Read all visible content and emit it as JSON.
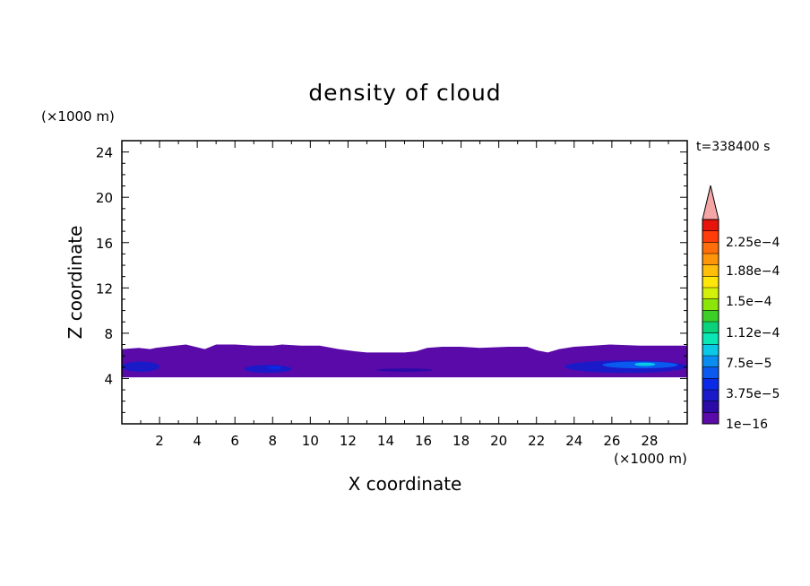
{
  "chart_data": {
    "type": "heatmap",
    "title": "density of cloud",
    "xlabel": "X coordinate",
    "ylabel": "Z coordinate",
    "x_unit": "(×1000 m)",
    "y_unit": "(×1000 m)",
    "time_label": "t=338400 s",
    "xlim": [
      0,
      30
    ],
    "ylim": [
      0,
      25
    ],
    "x_ticks": [
      "2",
      "4",
      "6",
      "8",
      "10",
      "12",
      "14",
      "16",
      "18",
      "20",
      "22",
      "24",
      "26",
      "28"
    ],
    "y_ticks": [
      "4",
      "8",
      "12",
      "16",
      "20",
      "24"
    ],
    "colorbar": {
      "tick_labels": [
        "1e−16",
        "3.75e−5",
        "7.5e−5",
        "1.12e−4",
        "1.5e−4",
        "1.88e−4",
        "2.25e−4"
      ],
      "colors": [
        "#5a0aa8",
        "#2c0aa8",
        "#1a1ac8",
        "#0a2ae6",
        "#0a5af0",
        "#0a8cf0",
        "#0ac8e6",
        "#0ae6b4",
        "#0ad27a",
        "#3ccf28",
        "#8ce60a",
        "#d2f00a",
        "#ffe60a",
        "#ffbe0a",
        "#ff960a",
        "#ff6e0a",
        "#ff3c0a",
        "#e6140a"
      ],
      "extend_color": "#f4a6a6"
    },
    "cloud_layer": {
      "base_z": 4.1,
      "top_z": [
        6.6,
        6.7,
        6.6,
        6.7,
        6.8,
        7.0,
        6.6,
        7.0,
        7.0,
        6.9,
        6.9,
        7.0,
        6.9,
        6.9,
        6.6,
        6.4,
        6.3,
        6.3,
        6.3,
        6.4,
        6.7,
        6.8,
        6.8,
        6.7,
        6.8,
        6.8,
        6.5,
        6.3,
        6.6,
        6.8,
        6.9,
        7.0,
        6.9,
        6.9,
        6.9
      ],
      "top_x": [
        0,
        0.9,
        1.5,
        1.8,
        2.3,
        3.4,
        4.4,
        5.0,
        6.0,
        7.0,
        8.0,
        8.5,
        9.5,
        10.5,
        11.5,
        12.4,
        13.0,
        14.0,
        15.0,
        15.6,
        16.2,
        17.0,
        18.0,
        19.0,
        20.5,
        21.5,
        22.0,
        22.6,
        23.2,
        24.0,
        25.0,
        25.9,
        27.5,
        29.0,
        30.0
      ],
      "denser_patches": [
        {
          "x": [
            0,
            2.0
          ],
          "z": [
            4.6,
            5.5
          ],
          "level": 2
        },
        {
          "x": [
            6.5,
            9.0
          ],
          "z": [
            4.5,
            5.2
          ],
          "level": 2
        },
        {
          "x": [
            7.7,
            8.5
          ],
          "z": [
            4.8,
            5.1
          ],
          "level": 3
        },
        {
          "x": [
            13.5,
            16.5
          ],
          "z": [
            4.6,
            4.9
          ],
          "level": 1
        },
        {
          "x": [
            23.5,
            30.0
          ],
          "z": [
            4.5,
            5.6
          ],
          "level": 2
        },
        {
          "x": [
            25.5,
            29.5
          ],
          "z": [
            4.9,
            5.5
          ],
          "level": 4
        },
        {
          "x": [
            27.2,
            28.3
          ],
          "z": [
            5.1,
            5.4
          ],
          "level": 6
        }
      ]
    }
  }
}
